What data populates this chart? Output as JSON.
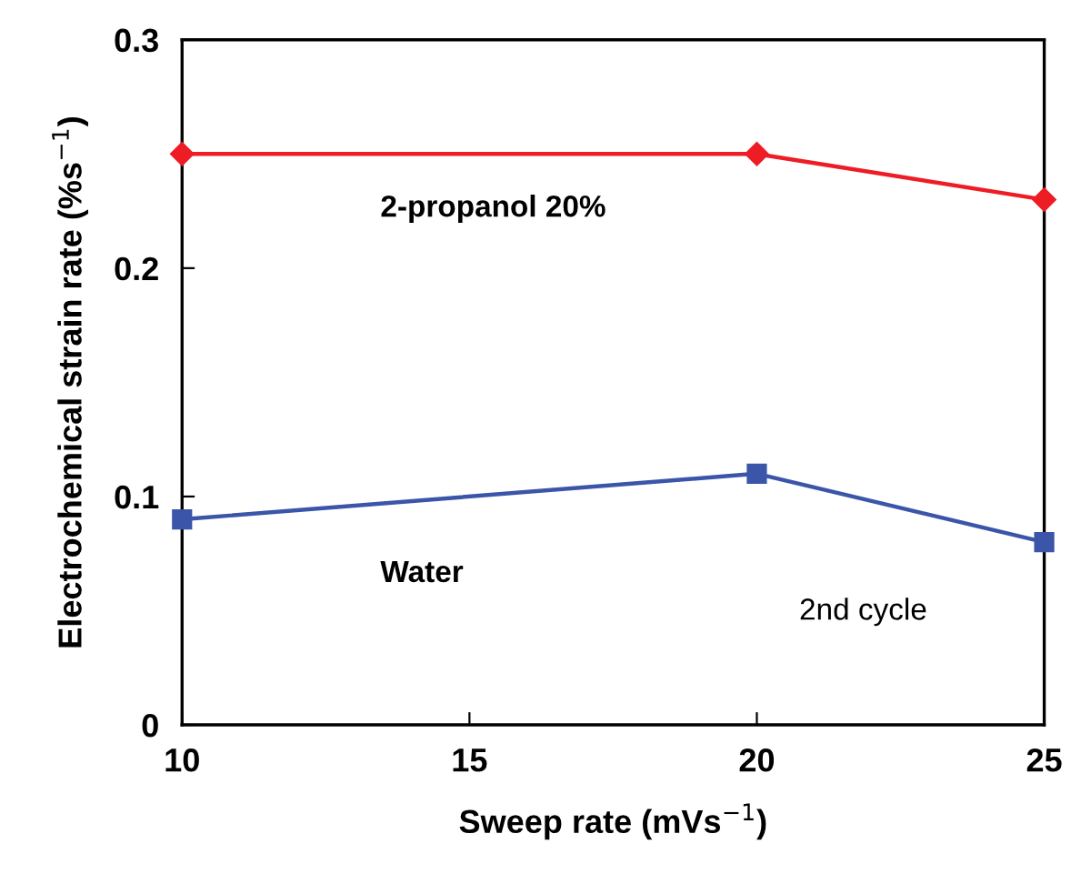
{
  "chart_data": {
    "type": "line",
    "xlabel": "Sweep rate (mVs$^{−1}$)",
    "ylabel": "Electrochemical strain rate (%s$^{−1}$)",
    "x": [
      10,
      20,
      25
    ],
    "series": [
      {
        "name": "2-propanol 20%",
        "color": "#ee1c24",
        "marker": "diamond",
        "values": [
          0.25,
          0.25,
          0.23
        ]
      },
      {
        "name": "Water",
        "color": "#3b55a8",
        "marker": "square",
        "values": [
          0.09,
          0.11,
          0.08
        ]
      }
    ],
    "annotations": [
      "2nd cycle"
    ],
    "xlim": [
      10,
      25
    ],
    "ylim": [
      0,
      0.3
    ],
    "xticks": [
      10,
      15,
      20,
      25
    ],
    "yticks": [
      0,
      0.1,
      0.2,
      0.3
    ],
    "grid": false,
    "legend": false,
    "line_style": "solid"
  }
}
